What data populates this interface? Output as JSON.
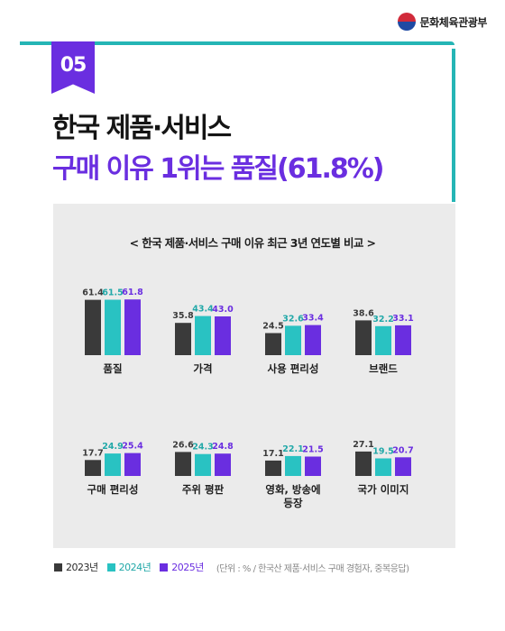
{
  "header": {
    "ministry": "문화체육관광부"
  },
  "badge": "05",
  "headline": {
    "line1": "한국 제품·서비스",
    "line2": "구매 이유 1위는 품질(61.8%)"
  },
  "panel_title": "< 한국 제품·서비스 구매 이유 최근 3년 연도별 비교 >",
  "colors": {
    "2023": "#3a3a3a",
    "2024": "#29c2c2",
    "2025": "#6a2ee0",
    "accent": "#6a2ee0",
    "teal": "#25b5b5"
  },
  "chart_data": {
    "type": "bar",
    "categories": [
      [
        "품질"
      ],
      [
        "가격"
      ],
      [
        "사용 편리성"
      ],
      [
        "브랜드"
      ],
      [
        "구매 편리성"
      ],
      [
        "주위 평판"
      ],
      [
        "영화, 방송에",
        "등장"
      ],
      [
        "국가 이미지"
      ]
    ],
    "series": [
      {
        "name": "2023년",
        "values": [
          61.4,
          35.8,
          24.5,
          38.6,
          17.7,
          26.6,
          17.1,
          27.1
        ]
      },
      {
        "name": "2024년",
        "values": [
          61.5,
          43.4,
          32.6,
          32.2,
          24.9,
          24.3,
          22.1,
          19.5
        ]
      },
      {
        "name": "2025년",
        "values": [
          61.8,
          43.0,
          33.4,
          33.1,
          25.4,
          24.8,
          21.5,
          20.7
        ]
      }
    ],
    "unit": "(단위 : % / 한국산 제품·서비스 구매 경험자, 중복응답)",
    "ylim": [
      0,
      100
    ],
    "grid": false,
    "legend_position": "bottom-left"
  }
}
